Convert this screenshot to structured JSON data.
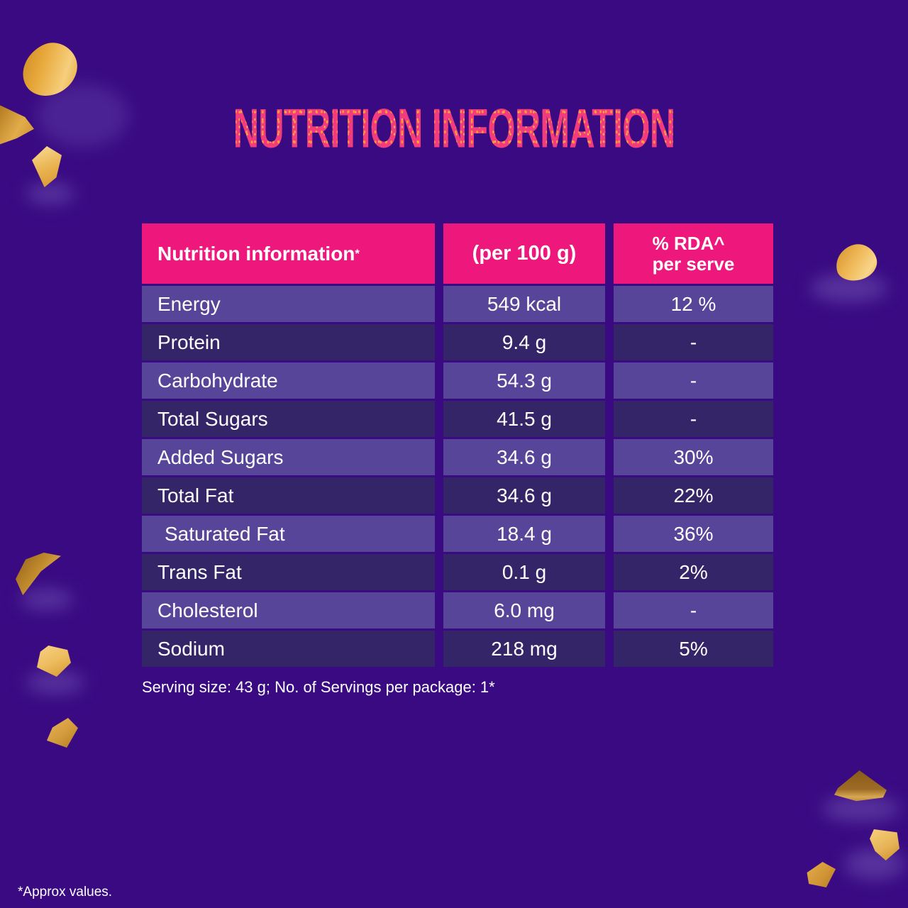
{
  "title": "NUTRITION INFORMATION",
  "table": {
    "header": {
      "col1": "Nutrition information",
      "col1_mark": "*",
      "col2": "(per 100 g)",
      "col3_line1": "% RDA^",
      "col3_line2": "per serve"
    },
    "rows": [
      {
        "label": "Energy",
        "per_100g": "549 kcal",
        "rda_per_serve": "12 %"
      },
      {
        "label": "Protein",
        "per_100g": "9.4 g",
        "rda_per_serve": "-"
      },
      {
        "label": "Carbohydrate",
        "per_100g": "54.3 g",
        "rda_per_serve": "-"
      },
      {
        "label": "Total Sugars",
        "per_100g": "41.5 g",
        "rda_per_serve": "-"
      },
      {
        "label": "Added Sugars",
        "per_100g": "34.6 g",
        "rda_per_serve": "30%"
      },
      {
        "label": "Total Fat",
        "per_100g": "34.6 g",
        "rda_per_serve": "22%"
      },
      {
        "label": "Saturated Fat",
        "per_100g": "18.4 g",
        "rda_per_serve": "36%"
      },
      {
        "label": "Trans Fat",
        "per_100g": "0.1 g",
        "rda_per_serve": "2%"
      },
      {
        "label": "Cholesterol",
        "per_100g": "6.0 mg",
        "rda_per_serve": "-"
      },
      {
        "label": "Sodium",
        "per_100g": "218 mg",
        "rda_per_serve": "5%"
      }
    ]
  },
  "serving_note": "Serving size: 43 g; No. of Servings per package: 1*",
  "footnote": "*Approx values.",
  "colors": {
    "background": "#390A82",
    "header_pink": "#EE187D",
    "title_pink": "#F23C7E",
    "title_dots_orange": "#FF9E2E",
    "row_light_purple": "#57459A",
    "row_dark_purple": "#342569",
    "text_white": "#FFFFFF",
    "almond_gold": "#E8A93C"
  }
}
